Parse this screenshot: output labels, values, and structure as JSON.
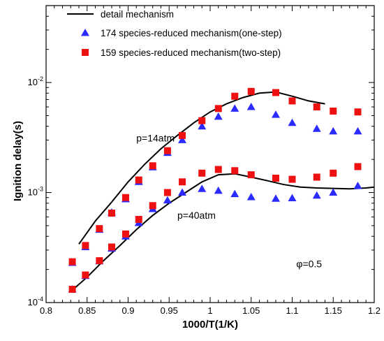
{
  "chart_data": {
    "type": "scatter",
    "xlabel": "1000/T(1/K)",
    "ylabel": "Ignition delay(s)",
    "xlim": [
      0.8,
      1.2
    ],
    "ylim": [
      0.0001,
      0.05
    ],
    "yscale": "log",
    "grid": false,
    "legend_position": "top-left",
    "x_ticks": [
      0.8,
      0.85,
      0.9,
      0.95,
      1.0,
      1.05,
      1.1,
      1.15,
      1.2
    ],
    "x_tick_labels": [
      "0.8",
      "0.85",
      "0.9",
      "0.95",
      "1",
      "1.05",
      "1.1",
      "1.15",
      "1.2"
    ],
    "y_ticks": [
      0.0001,
      0.001,
      0.01
    ],
    "y_tick_labels": [
      {
        "base": "10",
        "exp": "-4"
      },
      {
        "base": "10",
        "exp": "-3"
      },
      {
        "base": "10",
        "exp": "-2"
      }
    ],
    "annotations": [
      {
        "text": "p=14atm",
        "x": 0.91,
        "y": 0.0029
      },
      {
        "text": "p=40atm",
        "x": 0.96,
        "y": 0.00058
      },
      {
        "text": "φ=0.5",
        "x": 1.105,
        "y": 0.00021
      }
    ],
    "series": [
      {
        "name": "detail mechanism",
        "kind": "line",
        "color": "#000000",
        "groups": [
          {
            "x": [
              0.84,
              0.86,
              0.88,
              0.9,
              0.92,
              0.94,
              0.96,
              0.98,
              1.0,
              1.02,
              1.04,
              1.06,
              1.08,
              1.1,
              1.12,
              1.14
            ],
            "y": [
              0.00034,
              0.00055,
              0.00082,
              0.00125,
              0.0018,
              0.0025,
              0.0033,
              0.0043,
              0.0054,
              0.0064,
              0.0073,
              0.008,
              0.0082,
              0.0075,
              0.0068,
              0.0064
            ]
          },
          {
            "x": [
              0.83,
              0.85,
              0.87,
              0.89,
              0.91,
              0.93,
              0.95,
              0.97,
              0.99,
              1.01,
              1.03,
              1.05,
              1.07,
              1.09,
              1.11,
              1.13,
              1.15,
              1.17,
              1.19,
              1.2
            ],
            "y": [
              0.000126,
              0.00017,
              0.00024,
              0.00033,
              0.00046,
              0.00062,
              0.0008,
              0.001,
              0.00125,
              0.00145,
              0.00148,
              0.00138,
              0.00128,
              0.00118,
              0.00112,
              0.0011,
              0.00109,
              0.00108,
              0.0011,
              0.00112
            ]
          }
        ]
      },
      {
        "name": "174 species-reduced mechanism(one-step)",
        "kind": "triangle",
        "color": "#2b2bff",
        "groups": [
          {
            "x": [
              0.832,
              0.848,
              0.865,
              0.88,
              0.897,
              0.913,
              0.93,
              0.948,
              0.966,
              0.99,
              1.01,
              1.03,
              1.05,
              1.08,
              1.1,
              1.13,
              1.15,
              1.18
            ],
            "y": [
              0.00023,
              0.00032,
              0.00046,
              0.00066,
              0.00087,
              0.00125,
              0.0017,
              0.0023,
              0.003,
              0.004,
              0.0049,
              0.0058,
              0.006,
              0.0051,
              0.0043,
              0.0038,
              0.0036,
              0.0036
            ]
          },
          {
            "x": [
              0.832,
              0.848,
              0.865,
              0.88,
              0.897,
              0.913,
              0.93,
              0.948,
              0.966,
              0.99,
              1.01,
              1.03,
              1.05,
              1.08,
              1.1,
              1.13,
              1.15,
              1.18
            ],
            "y": [
              0.000132,
              0.000175,
              0.000238,
              0.00031,
              0.0004,
              0.00053,
              0.00071,
              0.00085,
              0.001,
              0.00108,
              0.00104,
              0.00097,
              0.00091,
              0.00088,
              0.00089,
              0.00094,
              0.001,
              0.00115
            ]
          }
        ]
      },
      {
        "name": "159 species-reduced mechanism(two-step)",
        "kind": "square",
        "color": "#ee1111",
        "groups": [
          {
            "x": [
              0.832,
              0.848,
              0.865,
              0.88,
              0.897,
              0.913,
              0.93,
              0.948,
              0.966,
              0.99,
              1.01,
              1.03,
              1.05,
              1.08,
              1.1,
              1.13,
              1.15,
              1.18
            ],
            "y": [
              0.000235,
              0.00033,
              0.00047,
              0.00065,
              0.0009,
              0.0013,
              0.00175,
              0.0024,
              0.0033,
              0.0045,
              0.0058,
              0.0075,
              0.0083,
              0.0081,
              0.0068,
              0.006,
              0.0055,
              0.0054
            ]
          },
          {
            "x": [
              0.832,
              0.848,
              0.865,
              0.88,
              0.897,
              0.913,
              0.93,
              0.948,
              0.966,
              0.99,
              1.01,
              1.03,
              1.05,
              1.08,
              1.1,
              1.13,
              1.15,
              1.18
            ],
            "y": [
              0.000132,
              0.000178,
              0.00024,
              0.00032,
              0.00042,
              0.00057,
              0.00076,
              0.001,
              0.00125,
              0.0015,
              0.00162,
              0.00158,
              0.00145,
              0.00135,
              0.00132,
              0.00138,
              0.0015,
              0.00172
            ]
          }
        ]
      }
    ]
  }
}
